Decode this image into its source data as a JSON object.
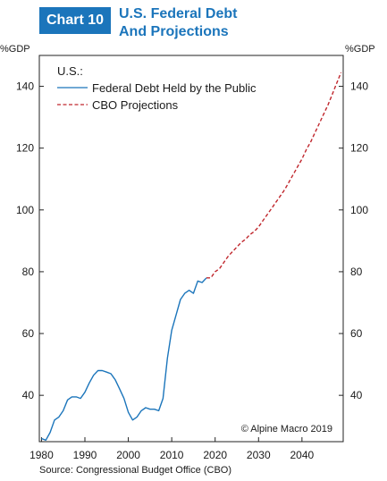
{
  "header": {
    "badge": "Chart 10",
    "title_line1": "U.S. Federal Debt",
    "title_line2": "And Projections"
  },
  "source": "Source: Congressional Budget Office (CBO)",
  "chart_data": {
    "type": "line",
    "title": "U.S. Federal Debt And Projections",
    "ylabel_left": "%GDP",
    "ylabel_right": "%GDP",
    "legend_title": "U.S.:",
    "legend_position": "top-left",
    "copyright": "© Alpine Macro 2019",
    "xlim": [
      1979.5,
      2049.5
    ],
    "ylim": [
      25,
      150
    ],
    "x_ticks": [
      1980,
      1990,
      2000,
      2010,
      2020,
      2030,
      2040
    ],
    "y_ticks": [
      40,
      60,
      80,
      100,
      120,
      140
    ],
    "grid": false,
    "colors": {
      "historical": "#1b75bb",
      "projection": "#c0272d"
    },
    "series": [
      {
        "name": "Federal Debt Held by the Public",
        "style": "solid",
        "color": "#1b75bb",
        "x": [
          1980,
          1981,
          1982,
          1983,
          1984,
          1985,
          1986,
          1987,
          1988,
          1989,
          1990,
          1991,
          1992,
          1993,
          1994,
          1995,
          1996,
          1997,
          1998,
          1999,
          2000,
          2001,
          2002,
          2003,
          2004,
          2005,
          2006,
          2007,
          2008,
          2009,
          2010,
          2011,
          2012,
          2013,
          2014,
          2015,
          2016,
          2017,
          2018
        ],
        "y": [
          26,
          25.5,
          28,
          32,
          33,
          35,
          38.5,
          39.5,
          39.5,
          39,
          41,
          44,
          46.5,
          48,
          48,
          47.5,
          47,
          45,
          42,
          39,
          34.5,
          32,
          33,
          35,
          36,
          35.5,
          35.5,
          35,
          39,
          52,
          61,
          66,
          71,
          73,
          74,
          73,
          77,
          76.5,
          78
        ]
      },
      {
        "name": "CBO Projections",
        "style": "dashed",
        "color": "#c0272d",
        "x": [
          2018,
          2019,
          2020,
          2021,
          2022,
          2023,
          2024,
          2025,
          2026,
          2027,
          2028,
          2029,
          2030,
          2031,
          2032,
          2033,
          2034,
          2035,
          2036,
          2037,
          2038,
          2039,
          2040,
          2041,
          2042,
          2043,
          2044,
          2045,
          2046,
          2047,
          2048,
          2049
        ],
        "y": [
          78,
          78,
          80,
          81,
          83,
          85,
          86.5,
          88,
          89.5,
          90.5,
          92,
          93,
          94.5,
          96.5,
          98.5,
          100.5,
          102.5,
          104.5,
          106.5,
          109,
          111.5,
          114,
          116.5,
          119.5,
          122,
          125,
          128,
          131,
          134,
          137.5,
          141,
          144.5
        ]
      }
    ]
  }
}
